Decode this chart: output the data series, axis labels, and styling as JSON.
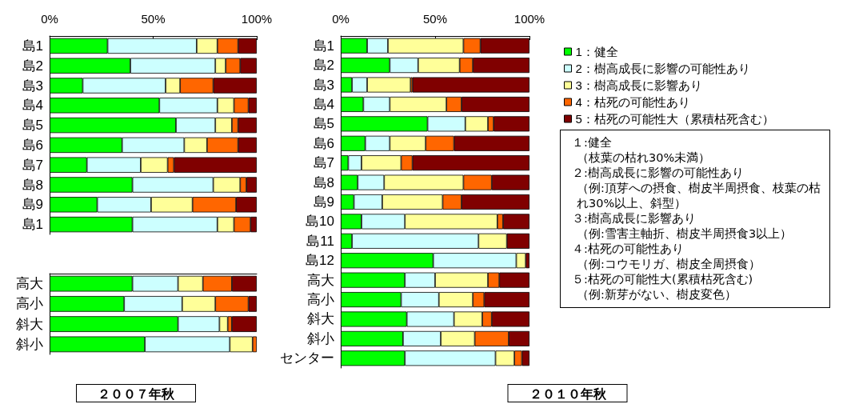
{
  "chart_data": [
    {
      "type": "bar",
      "orientation": "horizontal",
      "stacked": true,
      "categories": [
        "島1",
        "島2",
        "島3",
        "島4",
        "島5",
        "島6",
        "島7",
        "島8",
        "島9",
        "島1"
      ],
      "xlim": [
        0,
        100
      ],
      "xticks": [
        {
          "value": 0,
          "label": "0%"
        },
        {
          "value": 50,
          "label": "50%"
        },
        {
          "value": 100,
          "label": "100%"
        }
      ],
      "grid": false,
      "legend": false,
      "series": [
        {
          "color": "#00ff00",
          "values": [
            28,
            39,
            16,
            53,
            61,
            35,
            18,
            40,
            23,
            40
          ]
        },
        {
          "color": "#ccffff",
          "values": [
            43,
            41,
            40,
            28,
            19,
            30,
            26,
            39,
            26,
            41
          ]
        },
        {
          "color": "#ffff99",
          "values": [
            10,
            5,
            7,
            8,
            8,
            11,
            13,
            13,
            20,
            8
          ]
        },
        {
          "color": "#ff6600",
          "values": [
            10,
            7,
            16,
            7,
            3,
            15,
            3,
            3,
            21,
            8
          ]
        },
        {
          "color": "#800000",
          "values": [
            9,
            8,
            21,
            4,
            9,
            9,
            40,
            5,
            10,
            3
          ]
        }
      ]
    },
    {
      "type": "bar",
      "orientation": "horizontal",
      "stacked": true,
      "categories": [
        "高大",
        "高小",
        "斜大",
        "斜小"
      ],
      "xlim": [
        0,
        100
      ],
      "tick_labels": "y",
      "grid": false,
      "legend": false,
      "xlabel": "２００７年秋",
      "series": [
        {
          "color": "#00ff00",
          "values": [
            40,
            36,
            62,
            46
          ]
        },
        {
          "color": "#ccffff",
          "values": [
            22,
            28,
            20,
            41
          ]
        },
        {
          "color": "#ffff99",
          "values": [
            12,
            16,
            4,
            11
          ]
        },
        {
          "color": "#ff6600",
          "values": [
            14,
            16,
            2,
            2
          ]
        },
        {
          "color": "#800000",
          "values": [
            12,
            4,
            12,
            0
          ]
        }
      ]
    },
    {
      "type": "bar",
      "orientation": "horizontal",
      "stacked": true,
      "categories": [
        "島1",
        "島2",
        "島3",
        "島4",
        "島5",
        "島6",
        "島7",
        "島8",
        "島9",
        "島10",
        "島11",
        "島12",
        "高大",
        "高小",
        "斜大",
        "斜小",
        "センター"
      ],
      "xlim": [
        0,
        100
      ],
      "xticks": [
        {
          "value": 0,
          "label": "0%"
        },
        {
          "value": 50,
          "label": "50%"
        },
        {
          "value": 100,
          "label": "100%"
        }
      ],
      "grid": false,
      "legend": "right",
      "xlabel": "２０１０年秋",
      "annotations": [
        "１:健全",
        "（枝葉の枯れ30%未満）",
        "２:樹高成長に影響の可能性あり",
        "（例:頂芽への摂食、樹皮半周摂食、枝葉の枯れ30%以上、斜型）",
        "３:樹高成長に影響あり",
        "（例:雪害主軸折、樹皮半周摂食3以上）",
        "４:枯死の可能性あり",
        "（例:コウモリガ、樹皮全周摂食）",
        "５:枯死の可能性大(累積枯死含む)",
        "（例:新芽がない、樹皮変色）"
      ],
      "series": [
        {
          "name": "1：健全",
          "color": "#00ff00",
          "values": [
            14,
            26,
            6,
            12,
            46,
            13,
            4,
            9,
            7,
            11,
            6,
            49,
            34,
            32,
            35,
            33,
            34
          ]
        },
        {
          "name": "2：樹高成長に影響の可能性あり",
          "color": "#ccffff",
          "values": [
            11,
            15,
            8,
            14,
            20,
            13,
            7,
            14,
            15,
            23,
            67,
            44,
            16,
            20,
            25,
            20,
            48
          ]
        },
        {
          "name": "3：樹高成長に影響あり",
          "color": "#ffff99",
          "values": [
            40,
            22,
            23,
            30,
            12,
            19,
            21,
            42,
            32,
            49,
            15,
            5,
            28,
            18,
            15,
            18,
            10
          ]
        },
        {
          "name": "4：枯死の可能性あり",
          "color": "#ff6600",
          "values": [
            9,
            7,
            1,
            8,
            3,
            15,
            6,
            15,
            10,
            3,
            0,
            0,
            6,
            6,
            5,
            18,
            4
          ]
        },
        {
          "name": "5：枯死の可能性大（累積枯死含む）",
          "color": "#800000",
          "values": [
            26,
            30,
            62,
            36,
            19,
            40,
            62,
            20,
            36,
            14,
            12,
            2,
            16,
            24,
            20,
            11,
            4
          ]
        }
      ]
    }
  ]
}
